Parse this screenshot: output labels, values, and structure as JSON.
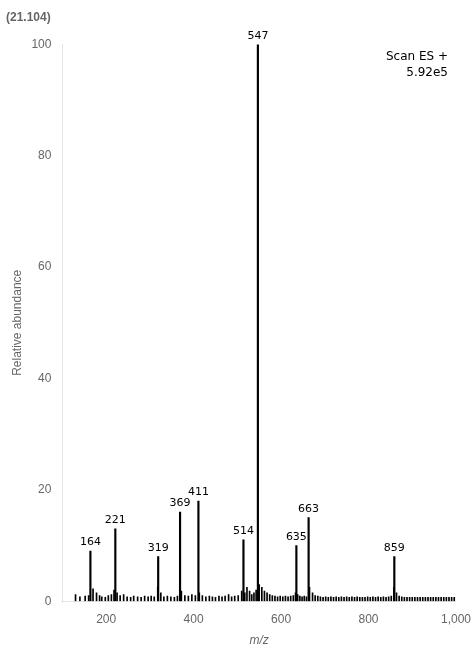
{
  "chart_data": {
    "type": "bar",
    "title": "(21.104)",
    "annotations": [
      "Scan ES +",
      "5.92e5"
    ],
    "xlabel": "m/z",
    "ylabel": "Relative abundance",
    "xlim": [
      100,
      1000
    ],
    "ylim": [
      0,
      100
    ],
    "xticks": [
      200,
      400,
      600,
      800,
      1000
    ],
    "yticks": [
      0,
      20,
      40,
      60,
      80,
      100
    ],
    "grid": false,
    "series": [
      {
        "color": "#000000",
        "x": [
          130,
          140,
          152,
          160,
          170,
          178,
          185,
          190,
          198,
          205,
          212,
          218,
          225,
          232,
          240,
          248,
          256,
          263,
          272,
          280,
          288,
          296,
          303,
          310,
          318,
          325,
          332,
          340,
          348,
          356,
          363,
          372,
          380,
          388,
          396,
          404,
          413,
          420,
          428,
          436,
          443,
          450,
          458,
          465,
          472,
          480,
          487,
          494,
          502,
          510,
          517,
          522,
          528,
          533,
          538,
          543,
          550,
          556,
          562,
          568,
          574,
          580,
          586,
          592,
          598,
          604,
          610,
          616,
          622,
          628,
          633,
          638,
          643,
          648,
          653,
          658,
          665,
          672,
          678,
          684,
          690,
          696,
          702,
          708,
          714,
          720,
          726,
          732,
          738,
          744,
          750,
          756,
          762,
          768,
          774,
          780,
          786,
          792,
          798,
          804,
          810,
          816,
          822,
          828,
          834,
          840,
          846,
          852,
          858,
          864,
          870,
          876,
          882,
          888,
          894,
          900,
          906,
          912,
          918,
          924,
          930,
          936,
          942,
          948,
          954,
          960,
          966,
          972,
          978,
          984,
          990,
          996
        ],
        "values": [
          1.2,
          0.8,
          0.9,
          1.0,
          2.2,
          1.5,
          1.0,
          0.8,
          0.7,
          1.0,
          1.2,
          2.0,
          1.5,
          1.0,
          1.2,
          0.8,
          0.7,
          0.9,
          0.8,
          0.7,
          0.9,
          0.8,
          0.9,
          0.8,
          2.5,
          1.5,
          0.8,
          0.9,
          0.8,
          0.7,
          0.9,
          1.8,
          1.0,
          0.9,
          1.2,
          1.0,
          1.5,
          1.0,
          0.8,
          0.9,
          0.8,
          0.7,
          0.9,
          0.8,
          0.9,
          1.2,
          0.8,
          0.9,
          1.0,
          1.8,
          1.5,
          2.5,
          1.8,
          1.2,
          1.5,
          2.0,
          3.0,
          2.5,
          1.8,
          1.5,
          1.2,
          1.0,
          0.9,
          0.8,
          0.9,
          0.8,
          0.9,
          0.8,
          0.9,
          1.0,
          1.5,
          1.2,
          0.9,
          0.8,
          0.9,
          0.8,
          2.5,
          1.5,
          1.0,
          0.9,
          0.8,
          0.7,
          0.8,
          0.7,
          0.8,
          0.7,
          0.8,
          0.7,
          0.8,
          0.7,
          0.8,
          0.7,
          0.8,
          0.7,
          0.8,
          0.7,
          0.7,
          0.7,
          0.8,
          0.7,
          0.8,
          0.7,
          0.8,
          0.7,
          0.8,
          0.7,
          0.8,
          0.9,
          2.5,
          1.5,
          0.9,
          0.8,
          0.7,
          0.7,
          0.7,
          0.7,
          0.7,
          0.7,
          0.7,
          0.7,
          0.7,
          0.7,
          0.7,
          0.7,
          0.7,
          0.7,
          0.7,
          0.7,
          0.7,
          0.7,
          0.7,
          0.7
        ]
      },
      {
        "color": "#000000",
        "x": [
          547,
          411,
          369,
          663,
          221,
          514,
          635,
          164,
          319,
          859
        ],
        "values": [
          100,
          18,
          16,
          15,
          13,
          11,
          10,
          9,
          8,
          8
        ],
        "labels": [
          "547",
          "411",
          "369",
          "663",
          "221",
          "514",
          "635",
          "164",
          "319",
          "859"
        ]
      }
    ]
  }
}
